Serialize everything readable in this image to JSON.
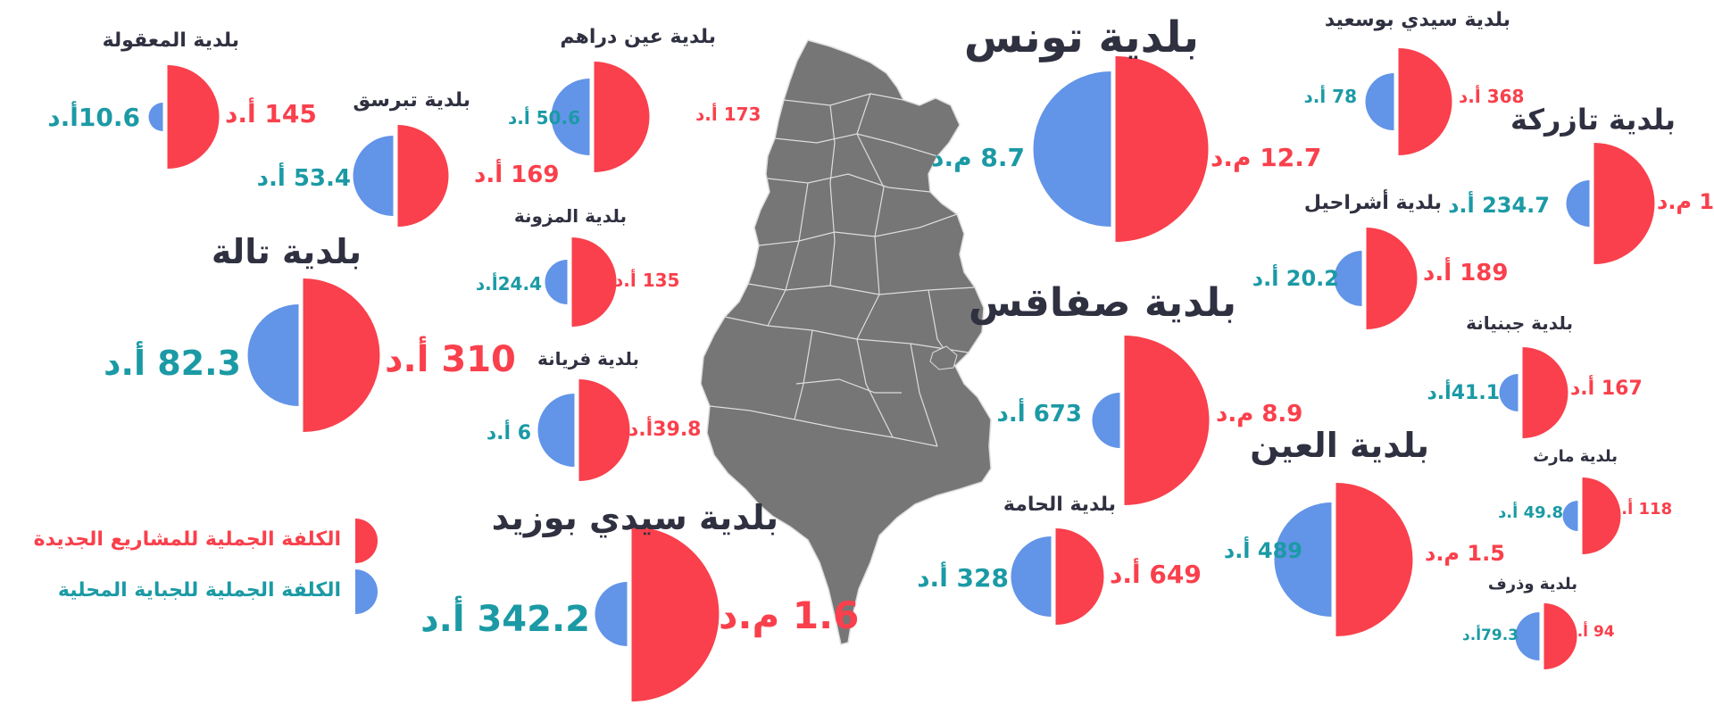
{
  "colors": {
    "new_projects": "#f9404c",
    "local_revenue": "#6294e8",
    "new_projects_text": "#f9404c",
    "local_revenue_text": "#1b9aa5",
    "title": "#2f3040",
    "map_fill": "#767676",
    "map_border": "#dddddd"
  },
  "legend": {
    "new_projects": "الكلفة الجملية للمشاريع الجديدة",
    "local_revenue": "الكلفة الجملية للجباية المحلية"
  },
  "chart_data": {
    "type": "half-circle-pairs",
    "series": [
      {
        "name": "الكلفة الجملية للمشاريع الجديدة",
        "key": "projects"
      },
      {
        "name": "الكلفة الجملية للجباية المحلية",
        "key": "revenue"
      }
    ],
    "municipalities": [
      {
        "name": "بلدية المعقولة",
        "projects": {
          "value": 145,
          "unit": "أ.د",
          "label": "145 أ.د"
        },
        "revenue": {
          "value": 10.6,
          "unit": "أ.د",
          "label": "10.6أ.د"
        }
      },
      {
        "name": "بلدية تبرسق",
        "projects": {
          "value": 169,
          "unit": "أ.د",
          "label": "169 أ.د"
        },
        "revenue": {
          "value": 53.4,
          "unit": "أ.د",
          "label": "53.4 أ.د"
        }
      },
      {
        "name": "بلدية تالة",
        "projects": {
          "value": 310,
          "unit": "أ.د",
          "label": "310 أ.د"
        },
        "revenue": {
          "value": 82.3,
          "unit": "أ.د",
          "label": "82.3 أ.د"
        }
      },
      {
        "name": "بلدية عين دراهم",
        "projects": {
          "value": 173,
          "unit": "أ.د",
          "label": "173 أ.د"
        },
        "revenue": {
          "value": 50.6,
          "unit": "أ.د",
          "label": "50.6 أ.د"
        }
      },
      {
        "name": "بلدية المزونة",
        "projects": {
          "value": 135,
          "unit": "أ.د",
          "label": "135 أ.د"
        },
        "revenue": {
          "value": 24.4,
          "unit": "أ.د",
          "label": "24.4أ.د"
        }
      },
      {
        "name": "بلدية فريانة",
        "projects": {
          "value": 39.8,
          "unit": "أ.د",
          "label": "39.8أ.د"
        },
        "revenue": {
          "value": 6,
          "unit": "أ.د",
          "label": "6 أ.د"
        }
      },
      {
        "name": "بلدية سيدي بوزيد",
        "projects": {
          "value": 1.6,
          "unit": "م.د",
          "label": "1.6 م.د"
        },
        "revenue": {
          "value": 342.2,
          "unit": "أ.د",
          "label": "342.2 أ.د"
        }
      },
      {
        "name": "بلدية تونس",
        "projects": {
          "value": 12.7,
          "unit": "م.د",
          "label": "12.7 م.د"
        },
        "revenue": {
          "value": 8.7,
          "unit": "م.د",
          "label": "8.7 م.د"
        }
      },
      {
        "name": "بلدية صفاقس",
        "projects": {
          "value": 8.9,
          "unit": "م.د",
          "label": "8.9 م.د"
        },
        "revenue": {
          "value": 673,
          "unit": "أ.د",
          "label": "673 أ.د"
        }
      },
      {
        "name": "بلدية الحامة",
        "projects": {
          "value": 649,
          "unit": "أ.د",
          "label": "649 أ.د"
        },
        "revenue": {
          "value": 328,
          "unit": "أ.د",
          "label": "328 أ.د"
        }
      },
      {
        "name": "بلدية سيدي بوسعيد",
        "projects": {
          "value": 368,
          "unit": "أ.د",
          "label": "368 أ.د"
        },
        "revenue": {
          "value": 78,
          "unit": "أ.د",
          "label": "78 أ.د"
        }
      },
      {
        "name": "بلدية تازركة",
        "projects": {
          "value": 1,
          "unit": "م.د",
          "label": "1 م.د"
        },
        "revenue": {
          "value": 234.7,
          "unit": "أ.د",
          "label": "234.7 أ.د"
        }
      },
      {
        "name": "بلدية أشراحيل",
        "projects": {
          "value": 189,
          "unit": "أ.د",
          "label": "189 أ.د"
        },
        "revenue": {
          "value": 20.2,
          "unit": "أ.د",
          "label": "20.2 أ.د"
        }
      },
      {
        "name": "بلدية جبنيانة",
        "projects": {
          "value": 167,
          "unit": "أ.د",
          "label": "167 أ.د"
        },
        "revenue": {
          "value": 41.1,
          "unit": "أ.د",
          "label": "41.1أ.د"
        }
      },
      {
        "name": "بلدية العين",
        "projects": {
          "value": 1.5,
          "unit": "م.د",
          "label": "1.5 م.د"
        },
        "revenue": {
          "value": 489,
          "unit": "أ.د",
          "label": "489 أ.د"
        }
      },
      {
        "name": "بلدية مارث",
        "projects": {
          "value": 118,
          "unit": "أ.د",
          "label": "118 أ.د"
        },
        "revenue": {
          "value": 49.8,
          "unit": "أ.د",
          "label": "49.8 أ.د"
        }
      },
      {
        "name": "بلدية وذرف",
        "projects": {
          "value": 94,
          "unit": "أ.د",
          "label": "94 أ.د"
        },
        "revenue": {
          "value": 79.3,
          "unit": "أ.د",
          "label": "79.3أ.د"
        }
      }
    ]
  }
}
